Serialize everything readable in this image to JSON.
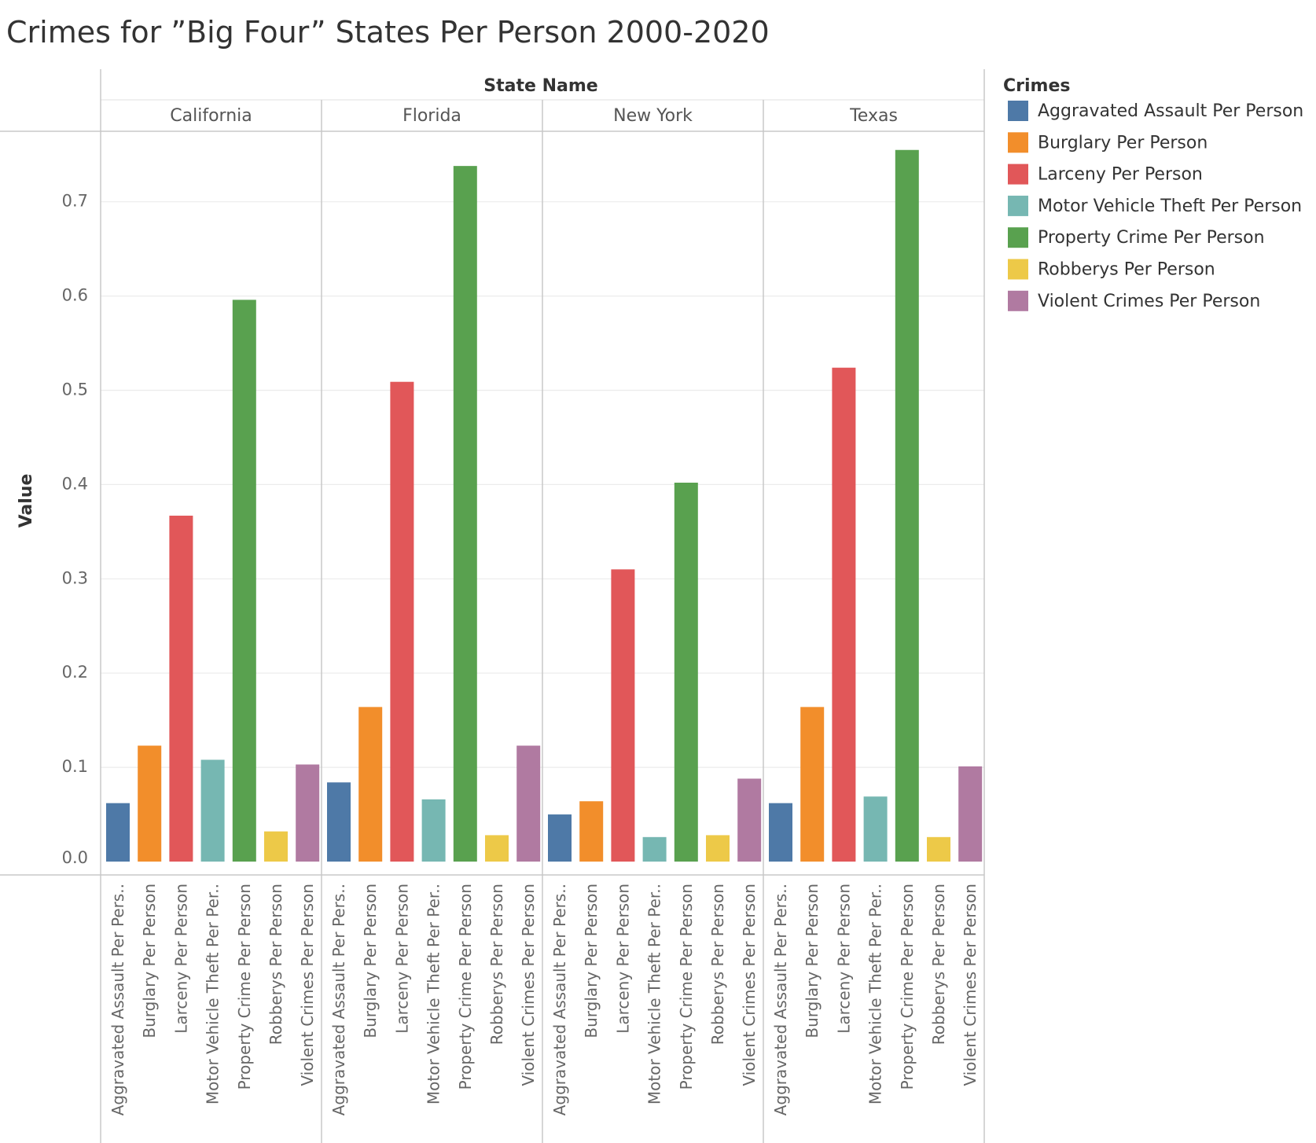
{
  "chart_data": {
    "type": "bar",
    "title": "Crimes for ”Big Four” States Per Person 2000-2020",
    "column_header": "State Name",
    "ylabel": "Value",
    "ylim": [
      0,
      0.79
    ],
    "yticks": [
      "0.0",
      "0.1",
      "0.2",
      "0.3",
      "0.4",
      "0.5",
      "0.6",
      "0.7"
    ],
    "grid": true,
    "legend_title": "Crimes",
    "legend_position": "right",
    "categories": [
      "Aggravated Assault Per Person",
      "Burglary Per Person",
      "Larceny Per Person",
      "Motor Vehicle Theft Per Person",
      "Property Crime Per Person",
      "Robberys Per Person",
      "Violent Crimes Per Person"
    ],
    "category_tick_labels": [
      "Aggravated Assault Per Pers..",
      "Burglary Per Person",
      "Larceny Per Person",
      "Motor Vehicle Theft Per Per..",
      "Property Crime Per Person",
      "Robberys Per Person",
      "Violent Crimes Per Person"
    ],
    "colors": [
      "#4e79a7",
      "#f28e2b",
      "#e15759",
      "#76b7b2",
      "#59a14f",
      "#edc948",
      "#b07aa1"
    ],
    "panels": [
      {
        "name": "California",
        "values": [
          0.062,
          0.123,
          0.367,
          0.108,
          0.596,
          0.032,
          0.103
        ]
      },
      {
        "name": "Florida",
        "values": [
          0.084,
          0.164,
          0.509,
          0.066,
          0.738,
          0.028,
          0.123
        ]
      },
      {
        "name": "New York",
        "values": [
          0.05,
          0.064,
          0.31,
          0.026,
          0.402,
          0.028,
          0.088
        ]
      },
      {
        "name": "Texas",
        "values": [
          0.062,
          0.164,
          0.524,
          0.069,
          0.755,
          0.026,
          0.101
        ]
      }
    ]
  }
}
